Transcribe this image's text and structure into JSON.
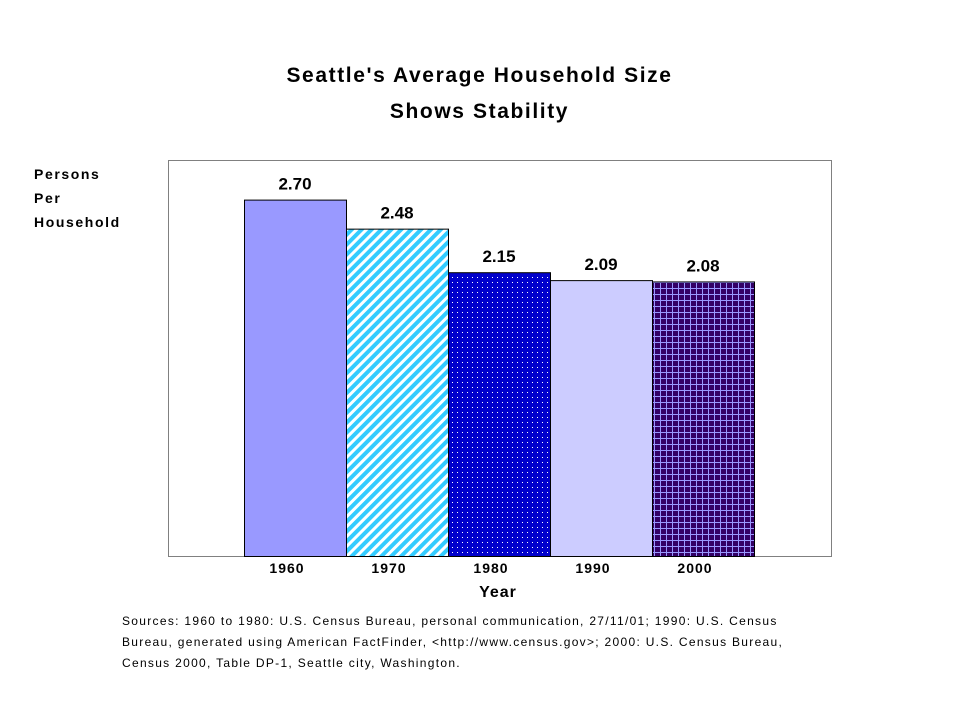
{
  "chart_data": {
    "type": "bar",
    "title_lines": [
      "Seattle's Average Household Size",
      "Shows Stability"
    ],
    "ylabel_lines": [
      "Persons",
      "Per",
      "Household"
    ],
    "xlabel": "Year",
    "categories": [
      "1960",
      "1970",
      "1980",
      "1990",
      "2000"
    ],
    "values": [
      2.7,
      2.48,
      2.15,
      2.09,
      2.08
    ],
    "data_labels": [
      "2.70",
      "2.48",
      "2.15",
      "2.09",
      "2.08"
    ],
    "ylim": [
      0,
      3
    ],
    "grid": false,
    "bar_colors": [
      "#9999ff",
      "#33ccff",
      "#0000cc",
      "#ccccff",
      "#330066"
    ]
  },
  "source_lines": [
    "Sources:  1960 to 1980: U.S. Census Bureau, personal communication, 27/11/01; 1990: U.S. Census",
    "Bureau, generated using American FactFinder, <http://www.census.gov>;  2000: U.S. Census Bureau,",
    "Census 2000, Table DP-1, Seattle city, Washington."
  ]
}
